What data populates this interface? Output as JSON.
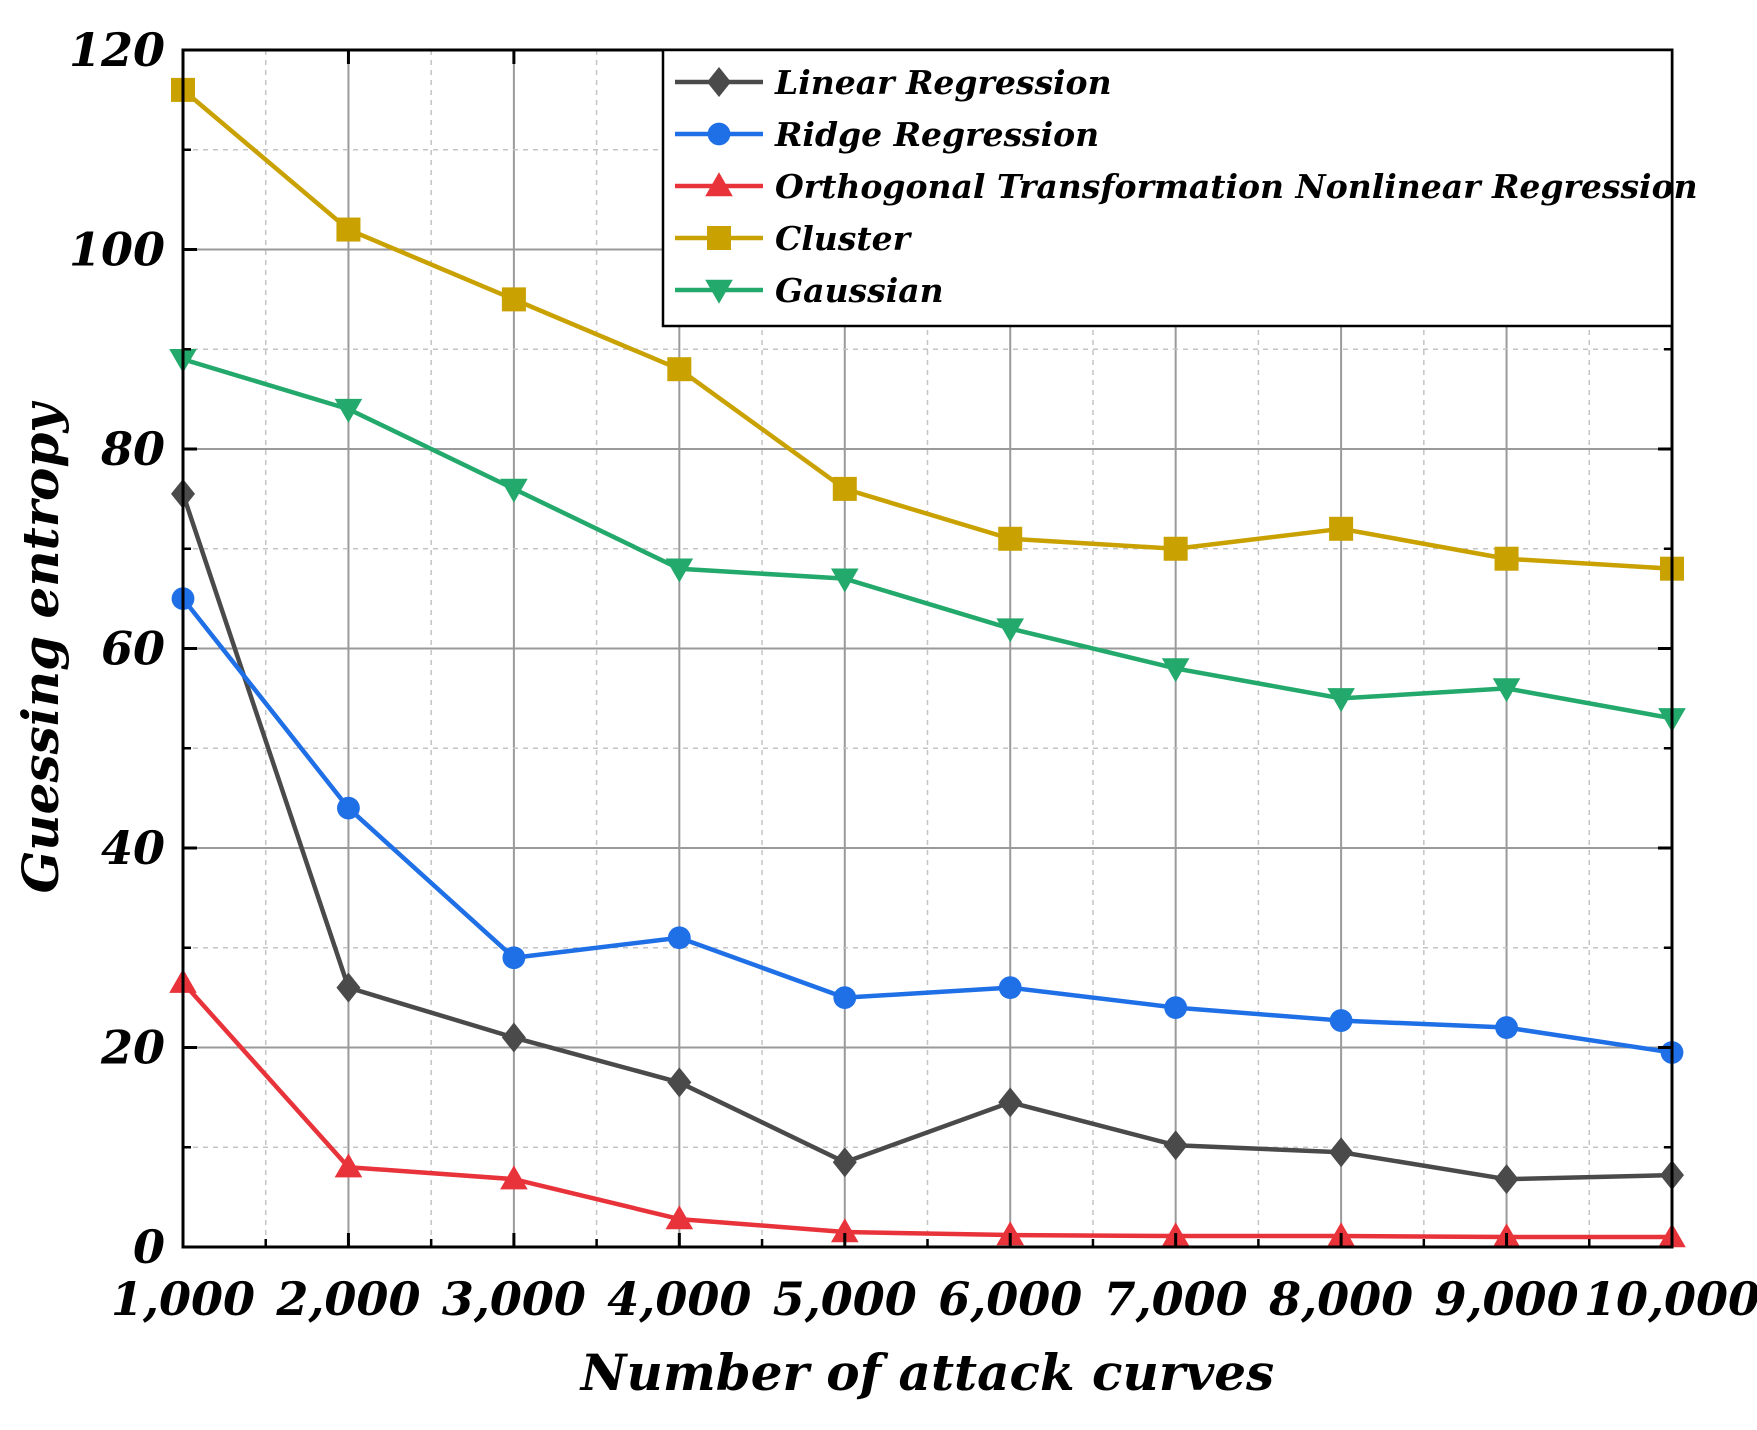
{
  "chart_data": {
    "type": "line",
    "title": "",
    "xlabel": "Number of attack curves",
    "ylabel": "Guessing entropy",
    "x": [
      1000,
      2000,
      3000,
      4000,
      5000,
      6000,
      7000,
      8000,
      9000,
      10000
    ],
    "x_tick_labels": [
      "1,000",
      "2,000",
      "3,000",
      "4,000",
      "5,000",
      "6,000",
      "7,000",
      "8,000",
      "9,000",
      "10,000"
    ],
    "xlim": [
      1000,
      10000
    ],
    "ylim": [
      0,
      120
    ],
    "y_ticks": [
      0,
      20,
      40,
      60,
      80,
      100,
      120
    ],
    "y_tick_labels": [
      "0",
      "20",
      "40",
      "60",
      "80",
      "100",
      "120"
    ],
    "grid": true,
    "legend_position": "top-right",
    "series": [
      {
        "name": "Linear Regression",
        "color": "#4a4a4a",
        "marker": "diamond",
        "values": [
          75.5,
          26,
          21,
          16.5,
          8.5,
          14.5,
          10.2,
          9.5,
          6.8,
          7.2
        ]
      },
      {
        "name": "Ridge Regression",
        "color": "#1f6fe6",
        "marker": "circle",
        "values": [
          65,
          44,
          29,
          31,
          25,
          26,
          24,
          22.7,
          22,
          19.5
        ]
      },
      {
        "name": "Orthogonal Transformation Nonlinear Regression",
        "color": "#e8333a",
        "marker": "triangle-up",
        "values": [
          26.5,
          8,
          6.8,
          2.8,
          1.5,
          1.2,
          1.1,
          1.1,
          1.0,
          1.0
        ]
      },
      {
        "name": "Cluster",
        "color": "#c9a100",
        "marker": "square",
        "values": [
          116,
          102,
          95,
          88,
          76,
          71,
          70,
          72,
          69,
          68
        ]
      },
      {
        "name": "Gaussian",
        "color": "#23a96b",
        "marker": "triangle-down",
        "values": [
          89,
          84,
          76,
          68,
          67,
          62,
          58,
          55,
          56,
          53
        ]
      }
    ]
  }
}
